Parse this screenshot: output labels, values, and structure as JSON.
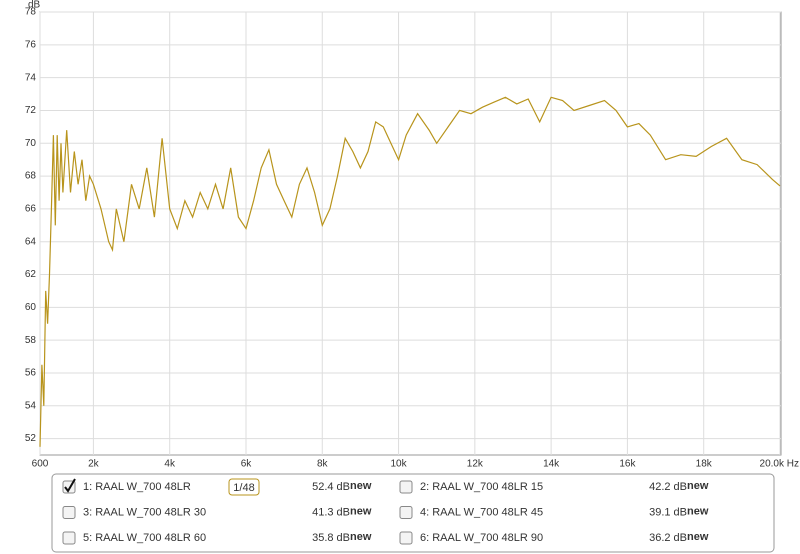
{
  "chart_data": {
    "type": "line",
    "y_label": "dB",
    "xlim": [
      600,
      20000
    ],
    "ylim": [
      51,
      78
    ],
    "xticks": [
      600,
      {
        "value": 2000,
        "label": "2k"
      },
      {
        "value": 4000,
        "label": "4k"
      },
      {
        "value": 6000,
        "label": "6k"
      },
      {
        "value": 8000,
        "label": "8k"
      },
      {
        "value": 10000,
        "label": "10k"
      },
      {
        "value": 12000,
        "label": "12k"
      },
      {
        "value": 14000,
        "label": "14k"
      },
      {
        "value": 16000,
        "label": "16k"
      },
      {
        "value": 18000,
        "label": "18k"
      },
      {
        "value": 20000,
        "label": "20.0k Hz"
      }
    ],
    "yticks": [
      52,
      54,
      56,
      58,
      60,
      62,
      64,
      66,
      68,
      70,
      72,
      74,
      76,
      78
    ],
    "grid": true,
    "x": [
      600,
      650,
      700,
      750,
      800,
      850,
      900,
      950,
      1000,
      1050,
      1100,
      1150,
      1200,
      1300,
      1400,
      1500,
      1600,
      1700,
      1800,
      1900,
      2000,
      2200,
      2400,
      2500,
      2600,
      2800,
      3000,
      3200,
      3400,
      3600,
      3800,
      4000,
      4200,
      4400,
      4600,
      4800,
      5000,
      5200,
      5400,
      5600,
      5800,
      6000,
      6200,
      6400,
      6600,
      6800,
      7000,
      7200,
      7400,
      7600,
      7800,
      8000,
      8200,
      8400,
      8600,
      8800,
      9000,
      9200,
      9400,
      9600,
      9800,
      10000,
      10200,
      10500,
      10800,
      11000,
      11300,
      11600,
      11900,
      12200,
      12500,
      12800,
      13100,
      13400,
      13700,
      14000,
      14300,
      14600,
      15000,
      15400,
      15700,
      16000,
      16300,
      16600,
      17000,
      17400,
      17800,
      18200,
      18600,
      19000,
      19400,
      19800,
      20000
    ],
    "series": [
      {
        "color": "#b8941c",
        "values": [
          51.5,
          56.5,
          54,
          61,
          59,
          62,
          66,
          70.5,
          65,
          70.5,
          66.5,
          70,
          67,
          70.8,
          67,
          69.5,
          67.5,
          69,
          66.5,
          68,
          67.5,
          66,
          64,
          63.5,
          66,
          64,
          67.5,
          66,
          68.5,
          65.5,
          70.3,
          66,
          64.8,
          66.5,
          65.5,
          67,
          66,
          67.5,
          66,
          68.5,
          65.5,
          64.8,
          66.5,
          68.5,
          69.6,
          67.5,
          66.5,
          65.5,
          67.5,
          68.5,
          67,
          65,
          66,
          68,
          70.3,
          69.5,
          68.5,
          69.5,
          71.3,
          71,
          70,
          69,
          70.5,
          71.8,
          70.8,
          70,
          71,
          72,
          71.8,
          72.2,
          72.5,
          72.8,
          72.4,
          72.7,
          71.3,
          72.8,
          72.6,
          72,
          72.3,
          72.6,
          72,
          71,
          71.2,
          70.5,
          69,
          69.3,
          69.2,
          69.8,
          70.3,
          69,
          68.7,
          67.8,
          67.4
        ]
      }
    ],
    "smoothing": "1/48",
    "legend": [
      {
        "name": "1: RAAL W_700 48LR",
        "level": "52.4 dB",
        "tag": "new",
        "checked": true,
        "color": "#b8941c"
      },
      {
        "name": "2: RAAL W_700 48LR 15",
        "level": "42.2 dB",
        "tag": "new",
        "checked": false,
        "color": "#1a1a8c"
      },
      {
        "name": "3: RAAL W_700 48LR 30",
        "level": "41.3 dB",
        "tag": "new",
        "checked": false,
        "color": "#1a8c8c"
      },
      {
        "name": "4: RAAL W_700 48LR 45",
        "level": "39.1 dB",
        "tag": "new",
        "checked": false,
        "color": "#b8941c"
      },
      {
        "name": "5: RAAL W_700 48LR 60",
        "level": "35.8 dB",
        "tag": "new",
        "checked": false,
        "color": "#a020a0"
      },
      {
        "name": "6: RAAL W_700 48LR 90",
        "level": "36.2 dB",
        "tag": "new",
        "checked": false,
        "color": "#8c1a1a"
      }
    ]
  }
}
